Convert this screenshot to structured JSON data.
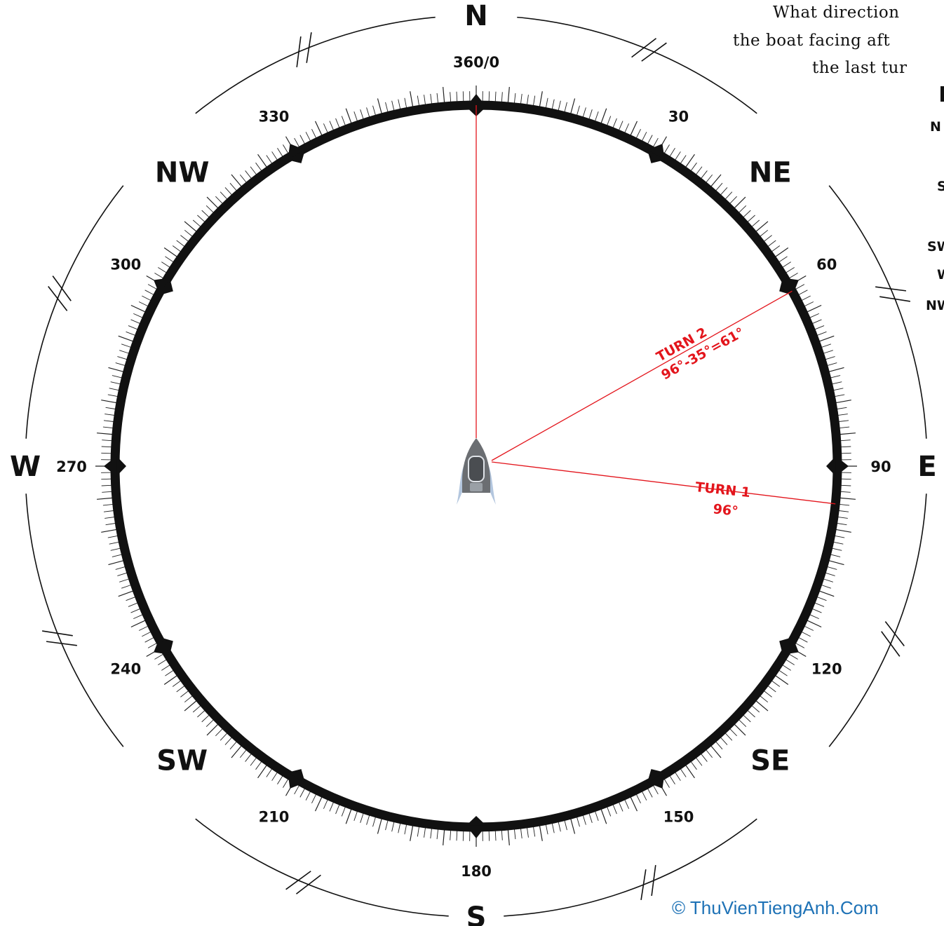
{
  "question": {
    "lines": [
      "What direction",
      "the boat facing aft",
      "the last tur"
    ],
    "options": [
      "N",
      "S",
      "SW",
      "W",
      "NW"
    ]
  },
  "compass": {
    "cardinals": [
      "N",
      "NE",
      "E",
      "SE",
      "S",
      "SW",
      "W",
      "NW"
    ],
    "degree_labels": [
      "360/0",
      "30",
      "60",
      "90",
      "120",
      "150",
      "180",
      "210",
      "240",
      "270",
      "300",
      "330"
    ]
  },
  "turns": [
    {
      "title": "TURN 1",
      "calc": "96°",
      "bearing": 96
    },
    {
      "title": "TURN 2",
      "calc": "96°-35°=61°",
      "bearing": 61
    }
  ],
  "colors": {
    "ring": "#111111",
    "turn_line": "#e3151c",
    "boat": "#6b6e72",
    "wake": "#b3c6de",
    "copyright": "#1e72b6"
  },
  "icons": {
    "boat": "boat-icon"
  },
  "copyright": "© ThuVienTiengAnh.Com"
}
